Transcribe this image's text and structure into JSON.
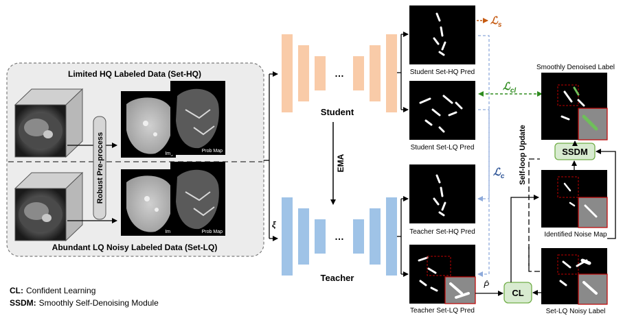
{
  "set_hq_title": "Limited HQ Labeled Data (Set-HQ)",
  "set_lq_title": "Abundant LQ Noisy Labeled Data (Set-LQ)",
  "preprocess_label": "Robust Pre-process",
  "img_label": "Img",
  "prob_map_label": "Prob Map",
  "student_label": "Student",
  "teacher_label": "Teacher",
  "ema_label": "EMA",
  "ellipsis": "…",
  "xi_label": "ξ",
  "loss_s": {
    "main": "ℒ",
    "sub": "s"
  },
  "loss_cl": {
    "main": "ℒ",
    "sub": "cl"
  },
  "loss_c": {
    "main": "ℒ",
    "sub": "c"
  },
  "p_hat_label": "P̂",
  "preds": {
    "student_hq": "Student Set-HQ Pred",
    "student_lq": "Student Set-LQ Pred",
    "teacher_hq": "Teacher Set-HQ Pred",
    "teacher_lq": "Teacher Set-LQ Pred"
  },
  "smoothly_denoised_label": "Smoothly Denoised Label",
  "identified_noise_map": "Identified Noise Map",
  "set_lq_noisy_label": "Set-LQ Noisy Label",
  "ssdm_box": "SSDM",
  "cl_box": "CL",
  "self_loop_update": "Self-loop Update",
  "legend": [
    {
      "key": "CL:",
      "value": "Confident Learning"
    },
    {
      "key": "SSDM:",
      "value": "Smoothly Self-Denoising Module"
    }
  ],
  "colors": {
    "student": "#f9cba8",
    "teacher": "#9fc3e7",
    "loss_s": "#c55a11",
    "loss_cl": "#2e8b1e",
    "loss_c": "#2f5597",
    "dashed_blue": "#8eaadb",
    "module_fill": "#d8ebd0",
    "module_stroke": "#70ad47",
    "red_box": "#c00000"
  }
}
